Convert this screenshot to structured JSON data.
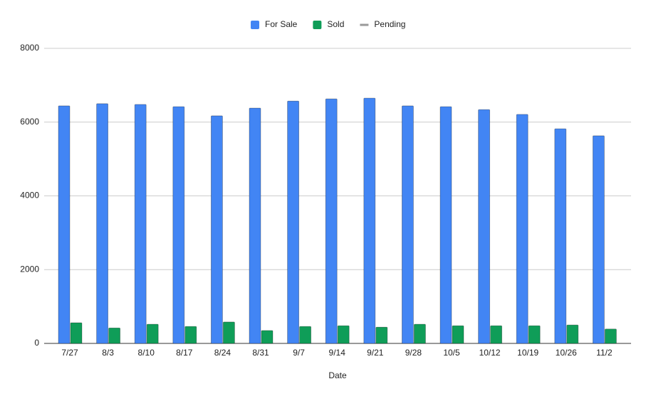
{
  "chart_data": {
    "type": "bar",
    "x_label": "Date",
    "categories": [
      "7/27",
      "8/3",
      "8/10",
      "8/17",
      "8/24",
      "8/31",
      "9/7",
      "9/14",
      "9/21",
      "9/28",
      "10/5",
      "10/12",
      "10/19",
      "10/26",
      "11/2"
    ],
    "series": [
      {
        "name": "For Sale",
        "color": "#4285f4",
        "values": [
          6440,
          6500,
          6480,
          6420,
          6170,
          6380,
          6570,
          6630,
          6650,
          6440,
          6420,
          6340,
          6210,
          5820,
          5630
        ]
      },
      {
        "name": "Sold",
        "color": "#0f9d58",
        "values": [
          560,
          420,
          520,
          460,
          580,
          350,
          460,
          480,
          440,
          520,
          480,
          480,
          480,
          500,
          390
        ]
      },
      {
        "name": "Pending",
        "color": "#999999",
        "values": [
          null,
          null,
          null,
          null,
          null,
          null,
          null,
          null,
          null,
          null,
          null,
          null,
          null,
          null,
          null
        ]
      }
    ],
    "ylim": [
      0,
      8000
    ],
    "yticks": [
      0,
      2000,
      4000,
      6000,
      8000
    ],
    "grid": true,
    "legend": "top"
  }
}
